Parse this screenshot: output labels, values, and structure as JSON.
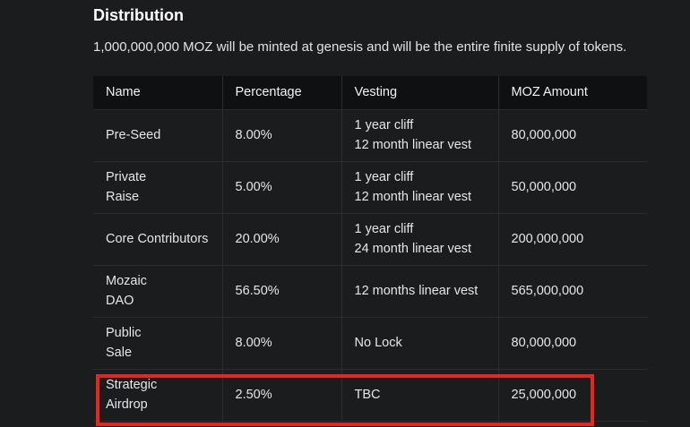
{
  "section": {
    "heading": "Distribution",
    "intro": "1,000,000,000 MOZ will be minted at genesis and will be the entire finite supply of tokens."
  },
  "table": {
    "headers": [
      "Name",
      "Percentage",
      "Vesting",
      "MOZ Amount"
    ],
    "rows": [
      {
        "name": [
          "Pre-Seed"
        ],
        "percentage": "8.00%",
        "vesting": [
          "1 year cliff",
          "12 month linear vest"
        ],
        "amount": "80,000,000"
      },
      {
        "name": [
          "Private",
          "Raise"
        ],
        "percentage": "5.00%",
        "vesting": [
          "1 year cliff",
          "12 month linear vest"
        ],
        "amount": "50,000,000"
      },
      {
        "name": [
          "Core Contributors"
        ],
        "percentage": "20.00%",
        "vesting": [
          "1 year cliff",
          "24 month linear vest"
        ],
        "amount": "200,000,000"
      },
      {
        "name": [
          "Mozaic",
          "DAO"
        ],
        "percentage": "56.50%",
        "vesting": [
          "12 months linear vest"
        ],
        "amount": "565,000,000"
      },
      {
        "name": [
          "Public",
          "Sale"
        ],
        "percentage": "8.00%",
        "vesting": [
          "No Lock"
        ],
        "amount": "80,000,000"
      },
      {
        "name": [
          "Strategic",
          "Airdrop"
        ],
        "percentage": "2.50%",
        "vesting": [
          "TBC"
        ],
        "amount": "25,000,000"
      }
    ]
  },
  "annotation": {
    "highlight_color": "#e8261c"
  }
}
